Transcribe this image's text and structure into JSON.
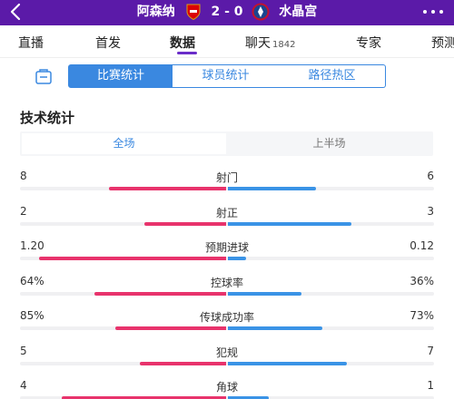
{
  "header": {
    "home_team": "阿森纳",
    "away_team": "水晶宫",
    "score": "2 - 0",
    "home_crest_color": "#db0007",
    "away_crest_color": "#1b458f",
    "bg_color": "#5b1aa8"
  },
  "tabs": [
    {
      "label": "直播",
      "sub": ""
    },
    {
      "label": "首发",
      "sub": ""
    },
    {
      "label": "数据",
      "sub": ""
    },
    {
      "label": "聊天",
      "sub": "1842"
    },
    {
      "label": "专家",
      "sub": ""
    },
    {
      "label": "预测",
      "sub": ""
    }
  ],
  "active_tab": "数据",
  "segments": [
    "比赛统计",
    "球员统计",
    "路径热区"
  ],
  "active_segment": "比赛统计",
  "section_title": "技术统计",
  "periods": [
    "全场",
    "上半场"
  ],
  "active_period": "全场",
  "colors": {
    "home": "#e8336c",
    "away": "#3a93e6",
    "accent": "#3a88e0"
  },
  "stats": [
    {
      "name": "射门",
      "home": "8",
      "away": "6",
      "home_share": 0.57,
      "away_share": 0.43
    },
    {
      "name": "射正",
      "home": "2",
      "away": "3",
      "home_share": 0.4,
      "away_share": 0.6
    },
    {
      "name": "预期进球",
      "home": "1.20",
      "away": "0.12",
      "home_share": 0.91,
      "away_share": 0.09
    },
    {
      "name": "控球率",
      "home": "64%",
      "away": "36%",
      "home_share": 0.64,
      "away_share": 0.36
    },
    {
      "name": "传球成功率",
      "home": "85%",
      "away": "73%",
      "home_share": 0.54,
      "away_share": 0.46
    },
    {
      "name": "犯规",
      "home": "5",
      "away": "7",
      "home_share": 0.42,
      "away_share": 0.58
    },
    {
      "name": "角球",
      "home": "4",
      "away": "1",
      "home_share": 0.8,
      "away_share": 0.2
    }
  ]
}
